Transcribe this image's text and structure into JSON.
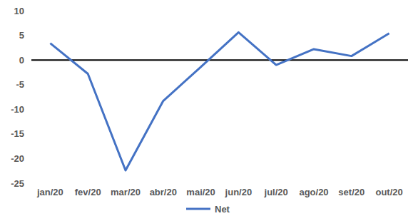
{
  "chart_data": {
    "type": "line",
    "categories": [
      "jan/20",
      "fev/20",
      "mar/20",
      "abr/20",
      "mai/20",
      "jun/20",
      "jul/20",
      "ago/20",
      "set/20",
      "out/20"
    ],
    "series": [
      {
        "name": "Net",
        "color": "#4472c4",
        "values": [
          3.4,
          -2.8,
          -22.4,
          -8.3,
          -1.4,
          5.6,
          -1.0,
          2.2,
          0.8,
          5.4
        ]
      }
    ],
    "ylim": [
      -25,
      10
    ],
    "yticks": [
      -25,
      -20,
      -15,
      -10,
      -5,
      0,
      5,
      10
    ],
    "grid": false,
    "legend": "bottom"
  }
}
